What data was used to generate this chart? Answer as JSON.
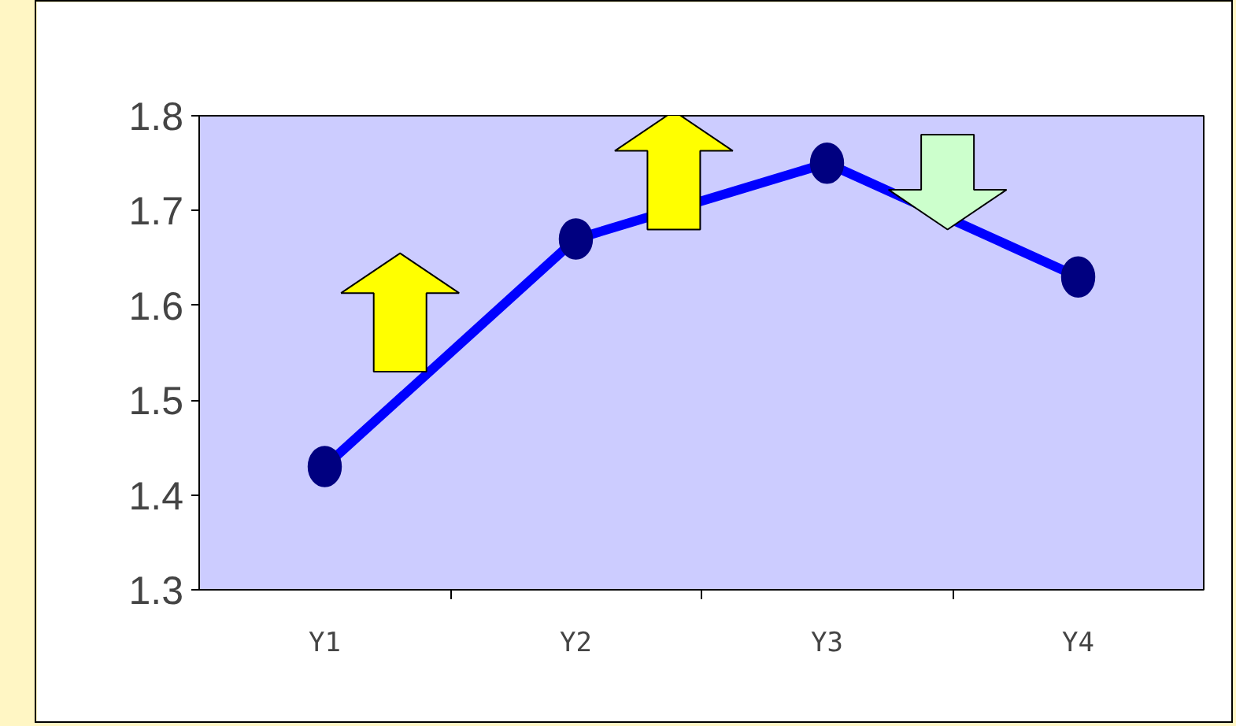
{
  "chart_data": {
    "type": "line",
    "categories": [
      "Y1",
      "Y2",
      "Y3",
      "Y4"
    ],
    "series": [
      {
        "color": "#0000ff",
        "values": [
          1.43,
          1.67,
          1.75,
          1.63
        ]
      }
    ],
    "ylim": [
      1.3,
      1.8
    ],
    "yticks": [
      1.3,
      1.4,
      1.5,
      1.6,
      1.7,
      1.8
    ],
    "marker": "circle",
    "grid": false
  }
}
